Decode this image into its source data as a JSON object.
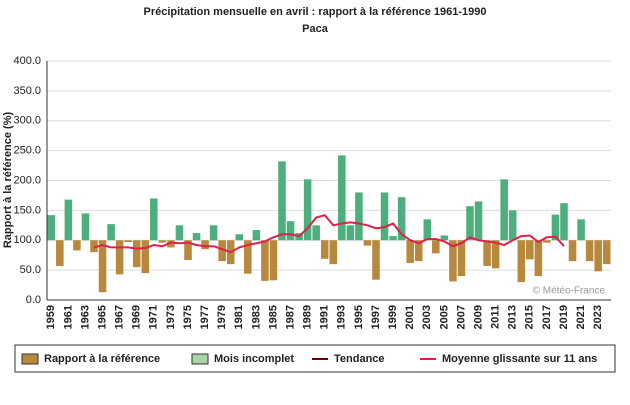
{
  "chart_data": {
    "type": "bar",
    "title": "Précipitation mensuelle en avril : rapport à la référence 1961-1990",
    "subtitle": "Paca",
    "y_label": "Rapport à la référence (%)",
    "credit": "© Météo-France",
    "categories": [
      "1959",
      null,
      "1961",
      null,
      "1963",
      null,
      "1965",
      null,
      "1967",
      null,
      "1969",
      null,
      "1971",
      null,
      "1973",
      null,
      "1975",
      null,
      "1977",
      null,
      "1979",
      null,
      "1981",
      null,
      "1983",
      null,
      "1985",
      null,
      "1987",
      null,
      "1989",
      null,
      "1991",
      null,
      "1993",
      null,
      "1995",
      null,
      "1997",
      null,
      "1999",
      null,
      "2001",
      null,
      "2003",
      null,
      "2005",
      null,
      "2007",
      null,
      "2009",
      null,
      "2011",
      null,
      "2013",
      null,
      "2015",
      null,
      "2017",
      null,
      "2019",
      null,
      "2021",
      null,
      "2023",
      null
    ],
    "series": [
      {
        "name": "Rapport à la référence",
        "base": 100,
        "values": [
          142,
          57,
          168,
          83,
          145,
          80,
          13,
          127,
          43,
          97,
          55,
          45,
          170,
          96,
          88,
          125,
          67,
          112,
          85,
          125,
          65,
          60,
          110,
          44,
          117,
          32,
          33,
          232,
          132,
          112,
          202,
          125,
          69,
          60,
          242,
          125,
          180,
          91,
          34,
          180,
          107,
          172,
          62,
          65,
          135,
          78,
          108,
          31,
          40,
          157,
          165,
          57,
          53,
          202,
          150,
          30,
          68,
          40,
          96,
          143,
          162,
          65,
          135,
          65,
          48,
          60
        ],
        "colors": [
          "#4caf7d",
          "#b8883c",
          "#4caf7d",
          "#b8883c",
          "#4caf7d",
          "#b8883c",
          "#b8883c",
          "#4caf7d",
          "#b8883c",
          "#b8883c",
          "#b8883c",
          "#b8883c",
          "#4caf7d",
          "#b8883c",
          "#b8883c",
          "#4caf7d",
          "#b8883c",
          "#4caf7d",
          "#b8883c",
          "#4caf7d",
          "#b8883c",
          "#b8883c",
          "#4caf7d",
          "#b8883c",
          "#4caf7d",
          "#b8883c",
          "#b8883c",
          "#4caf7d",
          "#4caf7d",
          "#4caf7d",
          "#4caf7d",
          "#4caf7d",
          "#b8883c",
          "#b8883c",
          "#4caf7d",
          "#4caf7d",
          "#4caf7d",
          "#b8883c",
          "#b8883c",
          "#4caf7d",
          "#4caf7d",
          "#4caf7d",
          "#b8883c",
          "#b8883c",
          "#4caf7d",
          "#b8883c",
          "#4caf7d",
          "#b8883c",
          "#b8883c",
          "#4caf7d",
          "#4caf7d",
          "#b8883c",
          "#b8883c",
          "#4caf7d",
          "#4caf7d",
          "#b8883c",
          "#b8883c",
          "#b8883c",
          "#b8883c",
          "#4caf7d",
          "#4caf7d",
          "#b8883c",
          "#4caf7d",
          "#b8883c",
          "#b8883c",
          "#b8883c"
        ]
      },
      {
        "name": "Moyenne glissante sur 11 ans",
        "color": "#e0204a",
        "values": [
          null,
          null,
          null,
          null,
          null,
          88,
          92,
          88,
          88,
          88,
          86,
          87,
          92,
          90,
          96,
          95,
          96,
          92,
          90,
          90,
          85,
          80,
          88,
          92,
          95,
          98,
          105,
          110,
          110,
          107,
          120,
          138,
          142,
          125,
          128,
          130,
          128,
          125,
          120,
          122,
          128,
          110,
          100,
          95,
          102,
          102,
          98,
          90,
          95,
          105,
          100,
          98,
          96,
          92,
          100,
          107,
          108,
          97,
          105,
          106,
          90,
          null,
          null,
          null,
          null,
          null
        ]
      }
    ],
    "legend": [
      {
        "name": "Rapport à la référence",
        "color": "#b8883c",
        "kind": "box"
      },
      {
        "name": "Mois incomplet",
        "color": "#a8d5a8",
        "kind": "box"
      },
      {
        "name": "Tendance",
        "color": "#6b0000",
        "kind": "line"
      },
      {
        "name": "Moyenne glissante sur 11 ans",
        "color": "#e0204a",
        "kind": "line"
      }
    ],
    "ylim": [
      0,
      400
    ],
    "yticks": [
      {
        "value": 0,
        "label": "0.0"
      },
      {
        "value": 50,
        "label": "50.0"
      },
      {
        "value": 100,
        "label": "100.0"
      },
      {
        "value": 150,
        "label": "150.0"
      },
      {
        "value": 200,
        "label": "200.0"
      },
      {
        "value": 250,
        "label": "250.0"
      },
      {
        "value": 300,
        "label": "300.0"
      },
      {
        "value": 350,
        "label": "350.0"
      },
      {
        "value": 400,
        "label": "400.0"
      }
    ],
    "grid": true
  }
}
